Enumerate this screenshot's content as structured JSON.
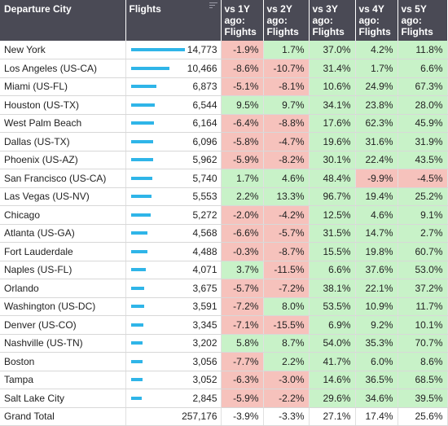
{
  "headers": {
    "city": "Departure City",
    "flights": "Flights",
    "vs1y": "vs 1Y ago: Flights",
    "vs2y": "vs 2Y ago: Flights",
    "vs3y": "vs 3Y ago: Flights",
    "vs4y": "vs 4Y ago: Flights",
    "vs5y": "vs 5Y ago: Flights"
  },
  "colors": {
    "header_bg": "#4a4a55",
    "bar": "#2fb5e8",
    "positive": "#c8f2c8",
    "negative": "#f6c2bc"
  },
  "rows": [
    {
      "city": "New York",
      "flights": "14,773",
      "bar": 1.0,
      "d1": "-1.9%",
      "d2": "1.7%",
      "d3": "37.0%",
      "d4": "4.2%",
      "d5": "11.8%"
    },
    {
      "city": "Los Angeles (US-CA)",
      "flights": "10,466",
      "bar": 0.708,
      "d1": "-8.6%",
      "d2": "-10.7%",
      "d3": "31.4%",
      "d4": "1.7%",
      "d5": "6.6%"
    },
    {
      "city": "Miami (US-FL)",
      "flights": "6,873",
      "bar": 0.465,
      "d1": "-5.1%",
      "d2": "-8.1%",
      "d3": "10.6%",
      "d4": "24.9%",
      "d5": "67.3%"
    },
    {
      "city": "Houston (US-TX)",
      "flights": "6,544",
      "bar": 0.443,
      "d1": "9.5%",
      "d2": "9.7%",
      "d3": "34.1%",
      "d4": "23.8%",
      "d5": "28.0%"
    },
    {
      "city": "West Palm Beach",
      "flights": "6,164",
      "bar": 0.417,
      "d1": "-6.4%",
      "d2": "-8.8%",
      "d3": "17.6%",
      "d4": "62.3%",
      "d5": "45.9%"
    },
    {
      "city": "Dallas (US-TX)",
      "flights": "6,096",
      "bar": 0.413,
      "d1": "-5.8%",
      "d2": "-4.7%",
      "d3": "19.6%",
      "d4": "31.6%",
      "d5": "31.9%"
    },
    {
      "city": "Phoenix (US-AZ)",
      "flights": "5,962",
      "bar": 0.404,
      "d1": "-5.9%",
      "d2": "-8.2%",
      "d3": "30.1%",
      "d4": "22.4%",
      "d5": "43.5%"
    },
    {
      "city": "San Francisco (US-CA)",
      "flights": "5,740",
      "bar": 0.389,
      "d1": "1.7%",
      "d2": "4.6%",
      "d3": "48.4%",
      "d4": "-9.9%",
      "d5": "-4.5%"
    },
    {
      "city": "Las Vegas (US-NV)",
      "flights": "5,553",
      "bar": 0.376,
      "d1": "2.2%",
      "d2": "13.3%",
      "d3": "96.7%",
      "d4": "19.4%",
      "d5": "25.2%"
    },
    {
      "city": "Chicago",
      "flights": "5,272",
      "bar": 0.357,
      "d1": "-2.0%",
      "d2": "-4.2%",
      "d3": "12.5%",
      "d4": "4.6%",
      "d5": "9.1%"
    },
    {
      "city": "Atlanta (US-GA)",
      "flights": "4,568",
      "bar": 0.309,
      "d1": "-6.6%",
      "d2": "-5.7%",
      "d3": "31.5%",
      "d4": "14.7%",
      "d5": "2.7%"
    },
    {
      "city": "Fort Lauderdale",
      "flights": "4,488",
      "bar": 0.304,
      "d1": "-0.3%",
      "d2": "-8.7%",
      "d3": "15.5%",
      "d4": "19.8%",
      "d5": "60.7%"
    },
    {
      "city": "Naples (US-FL)",
      "flights": "4,071",
      "bar": 0.276,
      "d1": "3.7%",
      "d2": "-11.5%",
      "d3": "6.6%",
      "d4": "37.6%",
      "d5": "53.0%"
    },
    {
      "city": "Orlando",
      "flights": "3,675",
      "bar": 0.249,
      "d1": "-5.7%",
      "d2": "-7.2%",
      "d3": "38.1%",
      "d4": "22.1%",
      "d5": "37.2%"
    },
    {
      "city": "Washington (US-DC)",
      "flights": "3,591",
      "bar": 0.243,
      "d1": "-7.2%",
      "d2": "8.0%",
      "d3": "53.5%",
      "d4": "10.9%",
      "d5": "11.7%"
    },
    {
      "city": "Denver (US-CO)",
      "flights": "3,345",
      "bar": 0.226,
      "d1": "-7.1%",
      "d2": "-15.5%",
      "d3": "6.9%",
      "d4": "9.2%",
      "d5": "10.1%"
    },
    {
      "city": "Nashville (US-TN)",
      "flights": "3,202",
      "bar": 0.217,
      "d1": "5.8%",
      "d2": "8.7%",
      "d3": "54.0%",
      "d4": "35.3%",
      "d5": "70.7%"
    },
    {
      "city": "Boston",
      "flights": "3,056",
      "bar": 0.207,
      "d1": "-7.7%",
      "d2": "2.2%",
      "d3": "41.7%",
      "d4": "6.0%",
      "d5": "8.6%"
    },
    {
      "city": "Tampa",
      "flights": "3,052",
      "bar": 0.207,
      "d1": "-6.3%",
      "d2": "-3.0%",
      "d3": "14.6%",
      "d4": "36.5%",
      "d5": "68.5%"
    },
    {
      "city": "Salt Lake City",
      "flights": "2,845",
      "bar": 0.193,
      "d1": "-5.9%",
      "d2": "-2.2%",
      "d3": "29.6%",
      "d4": "34.6%",
      "d5": "39.5%"
    }
  ],
  "total": {
    "label": "Grand Total",
    "flights": "257,176",
    "d1": "-3.9%",
    "d2": "-3.3%",
    "d3": "27.1%",
    "d4": "17.4%",
    "d5": "25.6%"
  }
}
